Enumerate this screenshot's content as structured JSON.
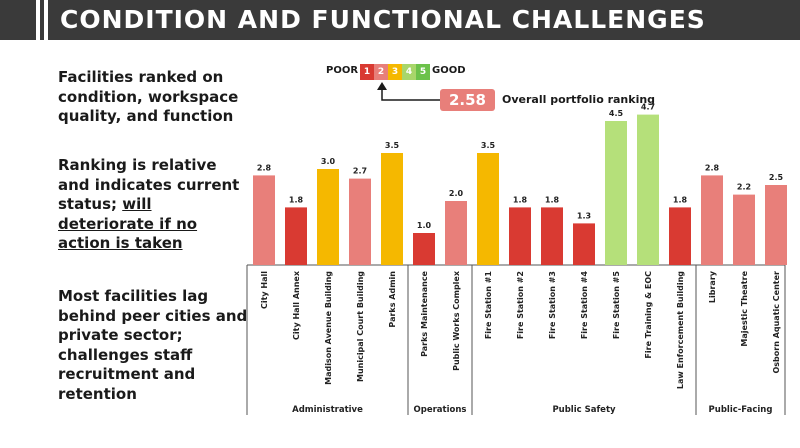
{
  "header": {
    "title": "CONDITION AND FUNCTIONAL CHALLENGES"
  },
  "bullets": {
    "b1": "Facilities ranked on condition, workspace quality, and function",
    "b2_pre": "Ranking is relative and indicates current status; ",
    "b2_underlined": "will deteriorate if no action is taken",
    "b3": "Most facilities lag behind peer cities and private sector; challenges staff recruitment and retention"
  },
  "legend": {
    "poor_label": "POOR",
    "good_label": "GOOD",
    "scale": [
      {
        "label": "1",
        "color": "#d93a32"
      },
      {
        "label": "2",
        "color": "#e87f7a"
      },
      {
        "label": "3",
        "color": "#f5b800"
      },
      {
        "label": "4",
        "color": "#a8d66a"
      },
      {
        "label": "5",
        "color": "#6cc24a"
      }
    ]
  },
  "overall": {
    "value": "2.58",
    "label": "Overall portfolio ranking"
  },
  "colors": {
    "red": "#d93a32",
    "salmon": "#e87f7a",
    "yellow": "#f5b800",
    "green": "#b5e07a",
    "header_bg": "#3a3a3a"
  },
  "chart_data": {
    "type": "bar",
    "ylim": [
      0,
      5
    ],
    "categories": [
      {
        "label": "City Hall",
        "value": 2.8,
        "color": "salmon",
        "group": "Administrative"
      },
      {
        "label": "City Hall Annex",
        "value": 1.8,
        "color": "red",
        "group": "Administrative"
      },
      {
        "label": "Madison Avenue Building",
        "value": 3.0,
        "color": "yellow",
        "group": "Administrative"
      },
      {
        "label": "Municipal Court Building",
        "value": 2.7,
        "color": "salmon",
        "group": "Administrative"
      },
      {
        "label": "Parks Admin",
        "value": 3.5,
        "color": "yellow",
        "group": "Administrative"
      },
      {
        "label": "Parks Maintenance",
        "value": 1.0,
        "color": "red",
        "group": "Operations"
      },
      {
        "label": "Public Works Complex",
        "value": 2.0,
        "color": "salmon",
        "group": "Operations"
      },
      {
        "label": "Fire Station #1",
        "value": 3.5,
        "color": "yellow",
        "group": "Public Safety"
      },
      {
        "label": "Fire Station #2",
        "value": 1.8,
        "color": "red",
        "group": "Public Safety"
      },
      {
        "label": "Fire Station #3",
        "value": 1.8,
        "color": "red",
        "group": "Public Safety"
      },
      {
        "label": "Fire Station #4",
        "value": 1.3,
        "color": "red",
        "group": "Public Safety"
      },
      {
        "label": "Fire Station #5",
        "value": 4.5,
        "color": "green",
        "group": "Public Safety"
      },
      {
        "label": "Fire Training & EOC",
        "value": 4.7,
        "color": "green",
        "group": "Public Safety"
      },
      {
        "label": "Law Enforcement Building",
        "value": 1.8,
        "color": "red",
        "group": "Public Safety"
      },
      {
        "label": "Library",
        "value": 2.8,
        "color": "salmon",
        "group": "Public-Facing"
      },
      {
        "label": "Majestic Theatre",
        "value": 2.2,
        "color": "salmon",
        "group": "Public-Facing"
      },
      {
        "label": "Osborn Aquatic Center",
        "value": 2.5,
        "color": "salmon",
        "group": "Public-Facing"
      }
    ],
    "value_labels": [
      "2.8",
      "1.8",
      "3.0",
      "2.7",
      "3.5",
      "1.0",
      "2.0",
      "3.5",
      "1.8",
      "1.8",
      "1.3",
      "4.5",
      "4.7",
      "1.8",
      "2.8",
      "2.2",
      "2.5"
    ],
    "groups": [
      "Administrative",
      "Operations",
      "Public Safety",
      "Public-Facing"
    ]
  }
}
